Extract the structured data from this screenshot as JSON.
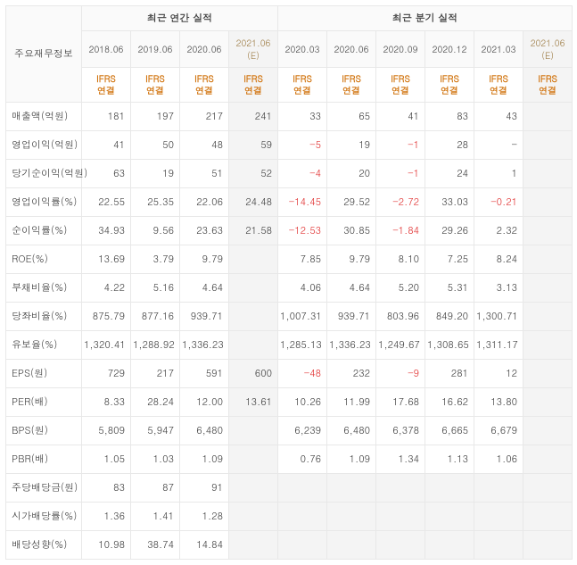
{
  "colors": {
    "border": "#e8e8e8",
    "headerBg": "#fafafa",
    "estBg": "#f4f4f4",
    "estHeaderText": "#9e7d46",
    "accent": "#d1740f",
    "negative": "#e13333",
    "text": "#444444"
  },
  "layout": {
    "tableWidthPx": 635,
    "labelColWidthPx": 85,
    "dataColWidthPx": 55,
    "fontSizePt": 11
  },
  "header": {
    "corner": "주요재무정보",
    "groupAnnual": "최근 연간 실적",
    "groupQuarter": "최근 분기 실적",
    "basisAcct": "IFRS",
    "basisScope": "연결"
  },
  "periods": [
    {
      "key": "a1",
      "label": "2018.06",
      "group": "annual",
      "est": false
    },
    {
      "key": "a2",
      "label": "2019.06",
      "group": "annual",
      "est": false
    },
    {
      "key": "a3",
      "label": "2020.06",
      "group": "annual",
      "est": false
    },
    {
      "key": "a4",
      "label": "2021.06 (E)",
      "group": "annual",
      "est": true
    },
    {
      "key": "q1",
      "label": "2020.03",
      "group": "quarter",
      "est": false
    },
    {
      "key": "q2",
      "label": "2020.06",
      "group": "quarter",
      "est": false
    },
    {
      "key": "q3",
      "label": "2020.09",
      "group": "quarter",
      "est": false
    },
    {
      "key": "q4",
      "label": "2020.12",
      "group": "quarter",
      "est": false
    },
    {
      "key": "q5",
      "label": "2021.03",
      "group": "quarter",
      "est": false
    },
    {
      "key": "q6",
      "label": "2021.06 (E)",
      "group": "quarter",
      "est": true
    }
  ],
  "rows": [
    {
      "label": "매출액(억원)",
      "v": [
        "181",
        "197",
        "217",
        "241",
        "33",
        "65",
        "41",
        "83",
        "43",
        ""
      ]
    },
    {
      "label": "영업이익(억원)",
      "v": [
        "41",
        "50",
        "48",
        "59",
        "-5",
        "19",
        "-1",
        "28",
        "-",
        ""
      ]
    },
    {
      "label": "당기순이익(억원)",
      "v": [
        "63",
        "19",
        "51",
        "52",
        "-4",
        "20",
        "-1",
        "24",
        "1",
        ""
      ]
    },
    {
      "label": "영업이익률(%)",
      "v": [
        "22.55",
        "25.35",
        "22.06",
        "24.48",
        "-14.45",
        "29.52",
        "-2.72",
        "33.03",
        "-0.21",
        ""
      ]
    },
    {
      "label": "순이익률(%)",
      "v": [
        "34.93",
        "9.56",
        "23.63",
        "21.58",
        "-12.53",
        "30.85",
        "-1.84",
        "29.26",
        "2.32",
        ""
      ]
    },
    {
      "label": "ROE(%)",
      "v": [
        "13.69",
        "3.79",
        "9.79",
        "",
        "7.85",
        "9.79",
        "8.10",
        "7.25",
        "8.24",
        ""
      ]
    },
    {
      "label": "부채비율(%)",
      "v": [
        "4.22",
        "5.16",
        "4.64",
        "",
        "4.06",
        "4.64",
        "5.20",
        "5.31",
        "3.13",
        ""
      ]
    },
    {
      "label": "당좌비율(%)",
      "v": [
        "875.79",
        "877.16",
        "939.71",
        "",
        "1,007.31",
        "939.71",
        "803.96",
        "849.20",
        "1,300.71",
        ""
      ]
    },
    {
      "label": "유보율(%)",
      "v": [
        "1,320.41",
        "1,288.92",
        "1,336.23",
        "",
        "1,285.13",
        "1,336.23",
        "1,249.67",
        "1,308.65",
        "1,311.17",
        ""
      ]
    },
    {
      "label": "EPS(원)",
      "v": [
        "729",
        "217",
        "591",
        "600",
        "-48",
        "232",
        "-9",
        "281",
        "12",
        ""
      ]
    },
    {
      "label": "PER(배)",
      "v": [
        "8.33",
        "28.24",
        "12.00",
        "13.61",
        "10.26",
        "11.99",
        "17.68",
        "16.62",
        "13.80",
        ""
      ]
    },
    {
      "label": "BPS(원)",
      "v": [
        "5,809",
        "5,947",
        "6,480",
        "",
        "6,239",
        "6,480",
        "6,378",
        "6,665",
        "6,679",
        ""
      ]
    },
    {
      "label": "PBR(배)",
      "v": [
        "1.05",
        "1.03",
        "1.09",
        "",
        "0.76",
        "1.09",
        "1.34",
        "1.13",
        "1.06",
        ""
      ]
    },
    {
      "label": "주당배당금(원)",
      "v": [
        "83",
        "87",
        "91",
        "",
        "",
        "",
        "",
        "",
        "",
        ""
      ],
      "empty": [
        4,
        5,
        6,
        7,
        8,
        9
      ]
    },
    {
      "label": "시가배당률(%)",
      "v": [
        "1.36",
        "1.41",
        "1.28",
        "",
        "",
        "",
        "",
        "",
        "",
        ""
      ],
      "empty": [
        3,
        4,
        5,
        6,
        7,
        8,
        9
      ]
    },
    {
      "label": "배당성향(%)",
      "v": [
        "10.98",
        "38.74",
        "14.84",
        "",
        "",
        "",
        "",
        "",
        "",
        ""
      ],
      "empty": [
        3,
        4,
        5,
        6,
        7,
        8,
        9
      ]
    }
  ]
}
